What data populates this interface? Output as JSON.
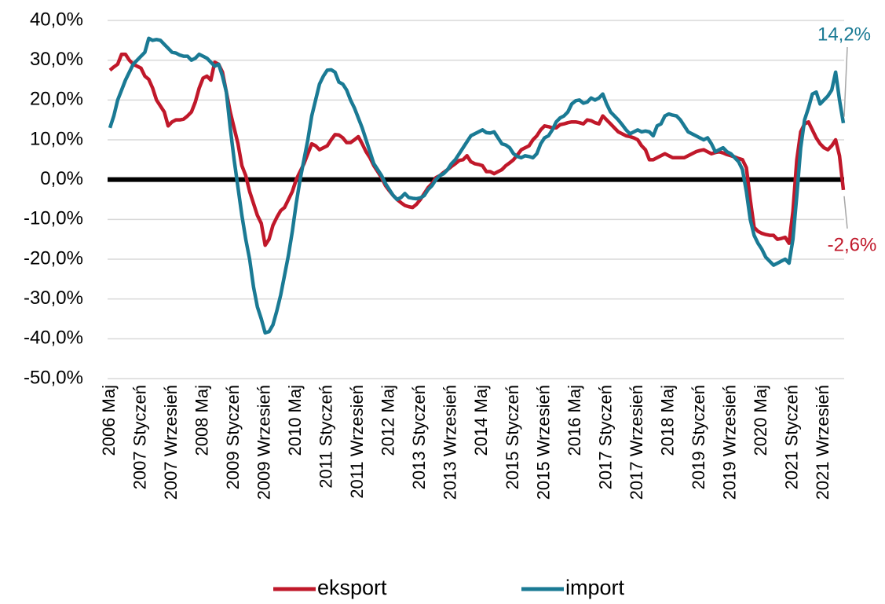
{
  "chart_data": {
    "type": "line",
    "categories": [
      "2006 Maj",
      null,
      null,
      null,
      null,
      null,
      null,
      null,
      "2007 Styczeń",
      null,
      null,
      null,
      null,
      null,
      null,
      null,
      "2007 Wrzesień",
      null,
      null,
      null,
      null,
      null,
      null,
      null,
      "2008 Maj",
      null,
      null,
      null,
      null,
      null,
      null,
      null,
      "2009 Styczeń",
      null,
      null,
      null,
      null,
      null,
      null,
      null,
      "2009 Wrzesień",
      null,
      null,
      null,
      null,
      null,
      null,
      null,
      "2010 Maj",
      null,
      null,
      null,
      null,
      null,
      null,
      null,
      "2011 Styczeń",
      null,
      null,
      null,
      null,
      null,
      null,
      null,
      "2011 Wrzesień",
      null,
      null,
      null,
      null,
      null,
      null,
      null,
      "2012 Maj",
      null,
      null,
      null,
      null,
      null,
      null,
      null,
      "2013 Styczeń",
      null,
      null,
      null,
      null,
      null,
      null,
      null,
      "2013 Wrzesień",
      null,
      null,
      null,
      null,
      null,
      null,
      null,
      "2014 Maj",
      null,
      null,
      null,
      null,
      null,
      null,
      null,
      "2015 Styczeń",
      null,
      null,
      null,
      null,
      null,
      null,
      null,
      "2015 Wrzesień",
      null,
      null,
      null,
      null,
      null,
      null,
      null,
      "2016 Maj",
      null,
      null,
      null,
      null,
      null,
      null,
      null,
      "2017 Styczeń",
      null,
      null,
      null,
      null,
      null,
      null,
      null,
      "2017 Wrzesień",
      null,
      null,
      null,
      null,
      null,
      null,
      null,
      "2018 Maj",
      null,
      null,
      null,
      null,
      null,
      null,
      null,
      "2019 Styczeń",
      null,
      null,
      null,
      null,
      null,
      null,
      null,
      "2019 Wrzesień",
      null,
      null,
      null,
      null,
      null,
      null,
      null,
      "2020 Maj",
      null,
      null,
      null,
      null,
      null,
      null,
      null,
      "2021 Styczeń",
      null,
      null,
      null,
      null,
      null,
      null,
      null,
      "2021 Wrzesień",
      null,
      null,
      null,
      null,
      null
    ],
    "series": [
      {
        "name": "eksport",
        "color": "#c0182a",
        "last_label": "-2,6%",
        "values": [
          27.5,
          28.3,
          29,
          31.5,
          31.5,
          30,
          29,
          28.5,
          28,
          26,
          25.2,
          23,
          20,
          18.5,
          17,
          13.5,
          14.5,
          15,
          15,
          15.2,
          16,
          17,
          19.5,
          23,
          25.5,
          26,
          25,
          29.5,
          29,
          27,
          22,
          17,
          13,
          9,
          3.5,
          1,
          -3,
          -6,
          -9,
          -11,
          -16.5,
          -15,
          -11.5,
          -9.5,
          -7.8,
          -7,
          -5,
          -3,
          0,
          2,
          4,
          6.5,
          9,
          8.5,
          7.5,
          8,
          8.5,
          10,
          11.3,
          11.2,
          10.5,
          9.3,
          9.3,
          10,
          10.8,
          9,
          7,
          5.5,
          3.5,
          2,
          0.5,
          -1.5,
          -2.8,
          -4,
          -5,
          -5.8,
          -6.5,
          -6.8,
          -7,
          -6.2,
          -5,
          -3.5,
          -2,
          -1,
          0.5,
          1,
          1.8,
          2.5,
          3.3,
          4,
          4.8,
          5,
          6,
          4.5,
          4,
          3.8,
          3.5,
          2,
          2,
          1.5,
          2,
          2.5,
          3.5,
          4.2,
          5,
          6.2,
          7.5,
          8,
          8.5,
          10,
          11,
          12.5,
          13.5,
          13.3,
          13,
          13,
          13.8,
          14,
          14.3,
          14.5,
          14.5,
          14.3,
          14,
          15,
          14.8,
          14.3,
          14,
          16,
          15,
          14,
          13,
          12,
          11.5,
          11,
          10.8,
          10.5,
          10,
          8.5,
          7.5,
          5,
          5,
          5.5,
          6,
          6.5,
          6,
          5.5,
          5.5,
          5.5,
          5.5,
          6,
          6.5,
          7,
          7.3,
          7.5,
          7,
          6.5,
          6.8,
          7,
          6.7,
          6.3,
          6,
          5.7,
          5.3,
          5,
          3,
          -5,
          -12,
          -13,
          -13.5,
          -13.8,
          -14,
          -14,
          -15,
          -14.8,
          -14.5,
          -16,
          -8,
          5,
          12,
          14,
          14.5,
          12.5,
          10.5,
          9,
          8,
          7.5,
          8.5,
          10,
          6,
          -2.6
        ]
      },
      {
        "name": "import",
        "color": "#1a7a94",
        "last_label": "14,2%",
        "values": [
          13,
          16,
          20,
          22.5,
          25,
          27,
          29,
          30,
          31,
          32,
          35.5,
          35,
          35.2,
          35,
          34,
          33,
          32,
          31.8,
          31.3,
          31,
          31,
          30,
          30.5,
          31.5,
          31,
          30.5,
          29.5,
          28.5,
          29,
          26,
          22,
          13,
          5,
          -2,
          -9,
          -15,
          -20,
          -27,
          -32,
          -35,
          -38.5,
          -38.2,
          -36.5,
          -33,
          -29,
          -24,
          -19,
          -13,
          -6,
          0,
          5,
          10,
          16,
          20,
          24,
          26,
          27.5,
          27.6,
          27,
          24.5,
          24,
          22.5,
          20,
          18,
          15.5,
          13,
          10,
          7,
          4,
          2.5,
          1,
          -1,
          -2.5,
          -4,
          -5,
          -4.5,
          -3.5,
          -4.5,
          -4.7,
          -4.8,
          -4.6,
          -4,
          -2.5,
          -1.5,
          0,
          1,
          1.5,
          2.5,
          4,
          5,
          6.5,
          8,
          9.5,
          11,
          11.5,
          12,
          12.5,
          11.8,
          11.7,
          12,
          10.5,
          9,
          8.7,
          8,
          6.5,
          5.8,
          5.5,
          6,
          5.8,
          5.5,
          6.5,
          9,
          10.5,
          11,
          12.5,
          14.5,
          15.5,
          16,
          17,
          19,
          19.8,
          20,
          19.2,
          19.5,
          20.5,
          20,
          20.5,
          21.5,
          19,
          17,
          16,
          15,
          13.8,
          12.5,
          11.5,
          12,
          12.5,
          12,
          12.2,
          12,
          11,
          13.5,
          14,
          16,
          16.5,
          16.2,
          16,
          15,
          13.5,
          12,
          11.5,
          11,
          10.5,
          10,
          10.5,
          9,
          7,
          7.5,
          8,
          7,
          6.5,
          5.5,
          4.5,
          2.5,
          -3,
          -10,
          -14,
          -16,
          -17.5,
          -19.5,
          -20.5,
          -21.5,
          -21,
          -20.5,
          -20,
          -21,
          -15,
          -4,
          8,
          15,
          18,
          21.5,
          22,
          19,
          20,
          21,
          22.5,
          27,
          20,
          14.2
        ]
      }
    ],
    "ylim": [
      -50,
      40
    ],
    "yticks": [
      {
        "value": -50,
        "label": "-50,0%"
      },
      {
        "value": -40,
        "label": "-40,0%"
      },
      {
        "value": -30,
        "label": "-30,0%"
      },
      {
        "value": -20,
        "label": "-20,0%"
      },
      {
        "value": -10,
        "label": "-10,0%"
      },
      {
        "value": 0,
        "label": "0,0%"
      },
      {
        "value": 10,
        "label": "10,0%"
      },
      {
        "value": 20,
        "label": "20,0%"
      },
      {
        "value": 30,
        "label": "30,0%"
      },
      {
        "value": 40,
        "label": "40,0%"
      }
    ],
    "grid": true,
    "legend": "bottom"
  }
}
